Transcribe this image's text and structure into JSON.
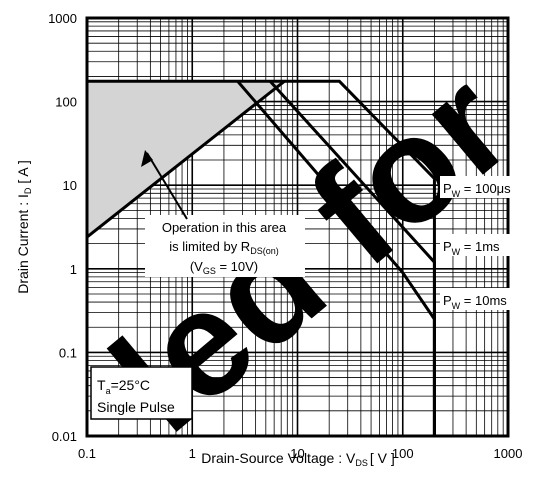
{
  "chart_data": {
    "type": "line",
    "x_scale": "log",
    "y_scale": "log",
    "xlim": [
      0.1,
      1000
    ],
    "ylim": [
      0.01,
      1000
    ],
    "grid": true,
    "x_ticks": [
      "0.1",
      "1",
      "10",
      "100",
      "1000"
    ],
    "y_ticks": [
      "1000",
      "100",
      "10",
      "1",
      "0.1",
      "0.01"
    ],
    "xlabel": {
      "main": "Drain-Source  Voltage : V",
      "sub": "DS",
      "unit": "[ V ]"
    },
    "ylabel": {
      "main": "Drain  Current  :  I",
      "sub": "D",
      "unit": "[ A ]"
    },
    "series": [
      {
        "name": "RDS(on) limit",
        "x": [
          0.1,
          7.5
        ],
        "y": [
          2.4,
          175
        ]
      },
      {
        "name": "100us",
        "x": [
          0.1,
          25,
          200,
          200
        ],
        "y": [
          175,
          175,
          12,
          0.01
        ]
      },
      {
        "name": "1ms",
        "x": [
          5.5,
          200,
          200
        ],
        "y": [
          175,
          1.2,
          0.01
        ]
      },
      {
        "name": "10ms",
        "x": [
          2.7,
          100,
          200,
          200
        ],
        "y": [
          175,
          0.9,
          0.25,
          0.01
        ]
      }
    ],
    "shaded_region": {
      "x": [
        0.1,
        7.5
      ],
      "y_top": 175
    },
    "annotations": {
      "area_lines": [
        "Operation in this area",
        "is limited by R",
        "DS(on)",
        "(V",
        "GS",
        " = 10V)"
      ],
      "pw_100": {
        "p": "P",
        "w": "W",
        "value": " = 100μs"
      },
      "pw_1": {
        "p": "P",
        "w": "W",
        "value": " = 1ms"
      },
      "pw_10": {
        "p": "P",
        "w": "W",
        "value": " = 10ms"
      },
      "cond": {
        "t": "T",
        "a": "a",
        "temp": "=25°C",
        "pulse": "Single Pulse"
      }
    },
    "watermark": "led for"
  }
}
